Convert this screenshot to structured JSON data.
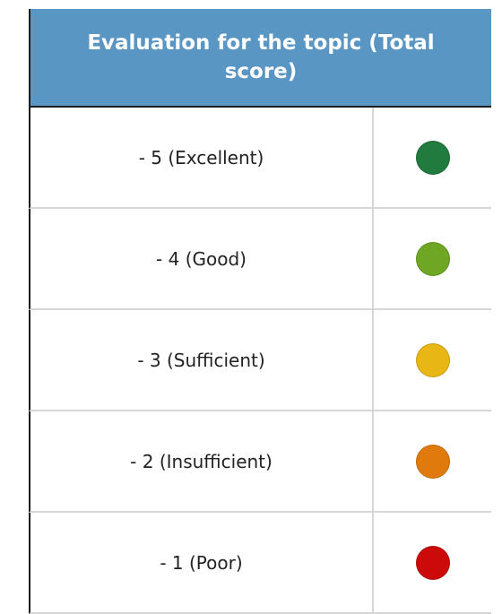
{
  "table": {
    "header": "Evaluation for the topic (Total score)",
    "rows": [
      {
        "label": "- 5 (Excellent)",
        "color": "#217a3e"
      },
      {
        "label": "- 4 (Good)",
        "color": "#6fa624"
      },
      {
        "label": "- 3 (Sufficient)",
        "color": "#e8b715"
      },
      {
        "label": "- 2 (Insufficient)",
        "color": "#e07a0c"
      },
      {
        "label": "- 1 (Poor)",
        "color": "#cc0a0a"
      }
    ]
  }
}
